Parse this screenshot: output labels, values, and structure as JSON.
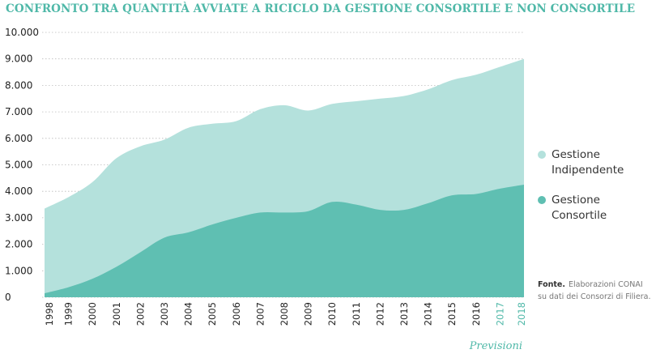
{
  "colors": {
    "independent": "#b4e1dc",
    "consortile": "#5fbfb2",
    "accent": "#4fb8a8",
    "grid": "#bbbbbb"
  },
  "chart_data": {
    "type": "area",
    "stacked": true,
    "title": "CONFRONTO TRA QUANTITÀ AVVIATE A RICICLO DA GESTIONE CONSORTILE E NON CONSORTILE",
    "x": [
      "1998",
      "1999",
      "2000",
      "2001",
      "2002",
      "2003",
      "2004",
      "2005",
      "2006",
      "2007",
      "2008",
      "2009",
      "2010",
      "2011",
      "2012",
      "2013",
      "2014",
      "2015",
      "2016",
      "2017",
      "2018"
    ],
    "forecast_years": [
      "2017",
      "2018"
    ],
    "forecast_label": "Previsioni",
    "ylim": [
      0,
      10000
    ],
    "yticks": [
      {
        "v": 0,
        "label": "0"
      },
      {
        "v": 1000,
        "label": "1.000"
      },
      {
        "v": 2000,
        "label": "2.000"
      },
      {
        "v": 3000,
        "label": "3.000"
      },
      {
        "v": 4000,
        "label": "4.000"
      },
      {
        "v": 5000,
        "label": "5.000"
      },
      {
        "v": 6000,
        "label": "6.000"
      },
      {
        "v": 7000,
        "label": "7.000"
      },
      {
        "v": 8000,
        "label": "8.000"
      },
      {
        "v": 9000,
        "label": "9.000"
      },
      {
        "v": 10000,
        "label": "10.000"
      }
    ],
    "grid": true,
    "legend_position": "right",
    "series": [
      {
        "name": "Gestione Consortile",
        "values": [
          150,
          380,
          700,
          1150,
          1700,
          2250,
          2450,
          2750,
          3000,
          3200,
          3200,
          3250,
          3600,
          3500,
          3300,
          3300,
          3550,
          3850,
          3900,
          4100,
          4250
        ]
      },
      {
        "name": "Gestione Indipendente",
        "values": [
          3200,
          3400,
          3650,
          4100,
          4000,
          3700,
          3950,
          3800,
          3650,
          3900,
          4050,
          3800,
          3700,
          3900,
          4200,
          4300,
          4300,
          4350,
          4500,
          4600,
          4750
        ]
      }
    ]
  },
  "legend": [
    {
      "label": "Gestione Indipendente",
      "color_key": "independent"
    },
    {
      "label": "Gestione Consortile",
      "color_key": "consortile"
    }
  ],
  "source": {
    "label": "Fonte.",
    "text": "Elaborazioni CONAI su dati dei Consorzi di Filiera."
  }
}
